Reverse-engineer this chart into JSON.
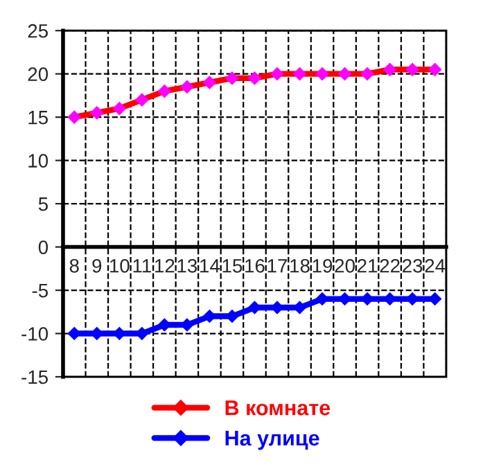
{
  "chart_data": {
    "type": "line",
    "categories": [
      "8",
      "9",
      "10",
      "11",
      "12",
      "13",
      "14",
      "15",
      "16",
      "17",
      "18",
      "19",
      "20",
      "21",
      "22",
      "23",
      "24"
    ],
    "series": [
      {
        "name": "В комнате",
        "color": "#ff0000",
        "values": [
          15,
          15.5,
          16,
          17,
          18,
          18.5,
          19,
          19.5,
          19.5,
          20,
          20,
          20,
          20,
          20,
          20.5,
          20.5,
          20.5
        ]
      },
      {
        "name": "На улице",
        "color": "#0000ff",
        "values": [
          -10,
          -10,
          -10,
          -10,
          -9,
          -9,
          -8,
          -8,
          -7,
          -7,
          -7,
          -6,
          -6,
          -6,
          -6,
          -6,
          -6
        ]
      }
    ],
    "ylim": [
      -15,
      25
    ],
    "yticks": [
      -15,
      -10,
      -5,
      0,
      5,
      10,
      15,
      20,
      25
    ],
    "grid": true,
    "legend": "bottom",
    "marker": "diamond",
    "line_style": "solid"
  }
}
